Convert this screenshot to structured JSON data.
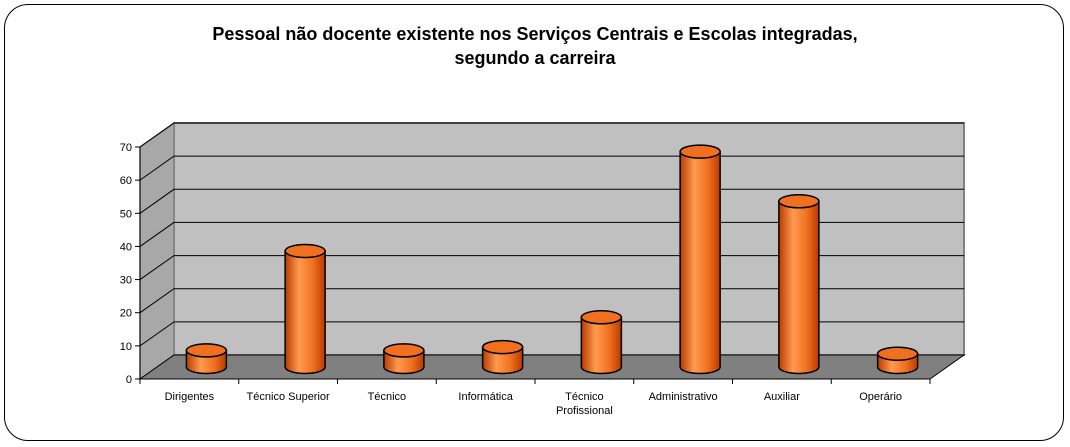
{
  "chart_data": {
    "type": "bar",
    "title_line1": "Pessoal não docente existente nos Serviços Centrais e Escolas integradas,",
    "title_line2": "segundo a carreira",
    "xlabel": "",
    "ylabel": "",
    "ylim": [
      0,
      70
    ],
    "yticks": [
      0,
      10,
      20,
      30,
      40,
      50,
      60,
      70
    ],
    "grid": true,
    "legend": "none",
    "categories": [
      [
        "Dirigentes"
      ],
      [
        "Técnico Superior"
      ],
      [
        "Técnico"
      ],
      [
        "Informática"
      ],
      [
        "Técnico",
        "Profissional"
      ],
      [
        "Administrativo"
      ],
      [
        "Auxiliar"
      ],
      [
        "Operário"
      ]
    ],
    "values": [
      5,
      35,
      5,
      6,
      15,
      65,
      50,
      4
    ],
    "colors": {
      "bar": "#f07020",
      "bar_dark": "#b83a00",
      "bar_light": "#ff9a50",
      "wall": "#c0c0c0",
      "floor": "#808080"
    }
  }
}
